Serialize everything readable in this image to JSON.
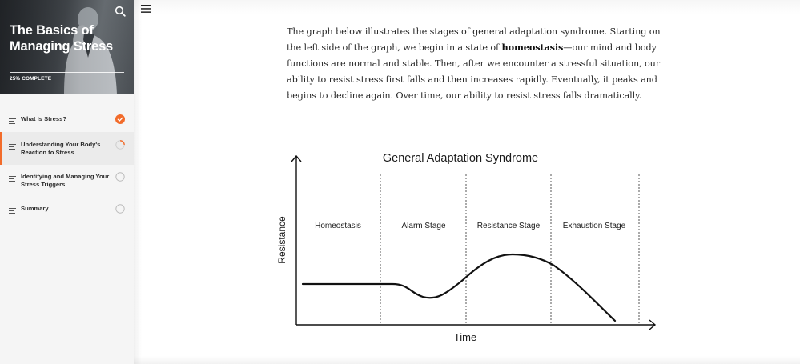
{
  "course": {
    "title_line1": "The Basics of",
    "title_line2": "Managing Stress",
    "progress_label": "25% COMPLETE",
    "progress_percent": 25
  },
  "lessons": [
    {
      "label": "What Is Stress?",
      "status": "complete",
      "icon": "checkmark-icon"
    },
    {
      "label": "Understanding Your Body's Reaction to Stress",
      "status": "in-progress",
      "icon": "progress-ring-icon"
    },
    {
      "label": "Identifying and Managing Your Stress Triggers",
      "status": "not-started",
      "icon": "empty-circle-icon"
    },
    {
      "label": "Summary",
      "status": "not-started",
      "icon": "empty-circle-icon"
    }
  ],
  "content": {
    "p1": "The graph below illustrates the stages of general adaptation syndrome. Starting on the left side of the graph, we begin in a state of ",
    "p_bold": "homeostasis",
    "p2": "—our mind and body functions are normal and stable. Then, after we encounter a stressful situation, our ability to resist stress first falls and then increases rapidly. Eventually, it peaks and begins to decline again. Over time, our ability to resist stress falls dramatically."
  },
  "figure": {
    "title": "General Adaptation Syndrome",
    "xlabel": "Time",
    "ylabel": "Resistance",
    "stages": [
      "Homeostasis",
      "Alarm Stage",
      "Resistance Stage",
      "Exhaustion Stage"
    ]
  },
  "colors": {
    "accent": "#f26b2a",
    "sidebar_bg": "#f5f5f5",
    "active_bg": "#ebebeb",
    "text": "#2a2a2a"
  }
}
